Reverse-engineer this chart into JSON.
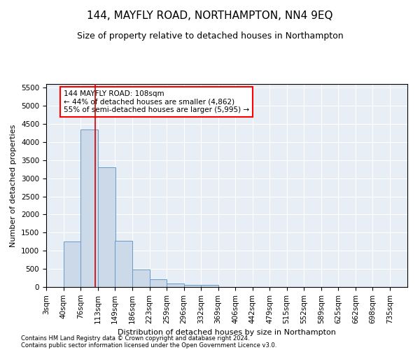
{
  "title": "144, MAYFLY ROAD, NORTHAMPTON, NN4 9EQ",
  "subtitle": "Size of property relative to detached houses in Northampton",
  "xlabel": "Distribution of detached houses by size in Northampton",
  "ylabel": "Number of detached properties",
  "footer_line1": "Contains HM Land Registry data © Crown copyright and database right 2024.",
  "footer_line2": "Contains public sector information licensed under the Open Government Licence v3.0.",
  "bar_color": "#ccd9e8",
  "bar_edge_color": "#6699cc",
  "background_color": "#e8eef5",
  "grid_color": "#ffffff",
  "annotation_text_line1": "144 MAYFLY ROAD: 108sqm",
  "annotation_text_line2": "← 44% of detached houses are smaller (4,862)",
  "annotation_text_line3": "55% of semi-detached houses are larger (5,995) →",
  "property_line_x": 108,
  "categories": [
    "3sqm",
    "40sqm",
    "76sqm",
    "113sqm",
    "149sqm",
    "186sqm",
    "223sqm",
    "259sqm",
    "296sqm",
    "332sqm",
    "369sqm",
    "406sqm",
    "442sqm",
    "479sqm",
    "515sqm",
    "552sqm",
    "589sqm",
    "625sqm",
    "662sqm",
    "698sqm",
    "735sqm"
  ],
  "bin_edges": [
    3,
    40,
    76,
    113,
    149,
    186,
    223,
    259,
    296,
    332,
    369,
    406,
    442,
    479,
    515,
    552,
    589,
    625,
    662,
    698,
    735
  ],
  "bin_width": 37,
  "values": [
    0,
    1260,
    4340,
    3300,
    1270,
    490,
    215,
    95,
    60,
    55,
    0,
    0,
    0,
    0,
    0,
    0,
    0,
    0,
    0,
    0,
    0
  ],
  "ylim": [
    0,
    5600
  ],
  "yticks": [
    0,
    500,
    1000,
    1500,
    2000,
    2500,
    3000,
    3500,
    4000,
    4500,
    5000,
    5500
  ],
  "title_fontsize": 11,
  "subtitle_fontsize": 9,
  "xlabel_fontsize": 8,
  "ylabel_fontsize": 8,
  "tick_fontsize": 7.5,
  "annotation_fontsize": 7.5,
  "footer_fontsize": 6,
  "red_line_color": "#cc0000",
  "xmin": 3,
  "xmax": 772
}
